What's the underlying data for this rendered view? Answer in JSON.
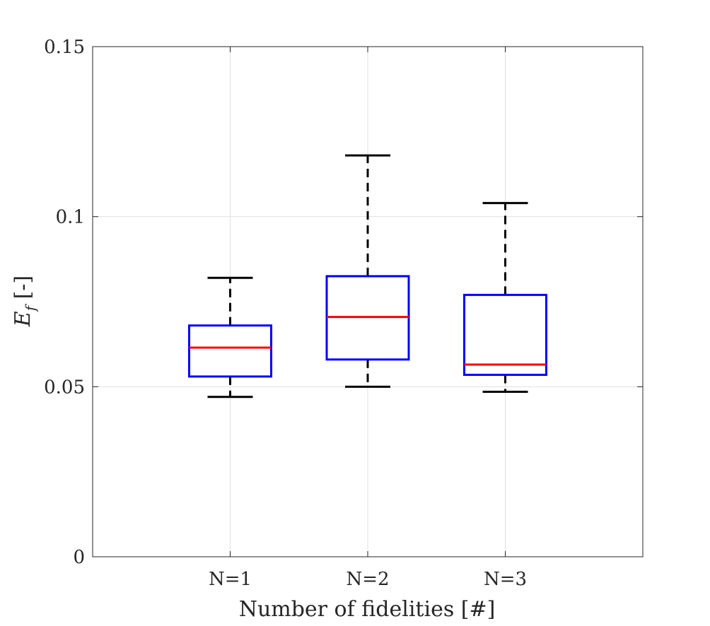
{
  "chart_data": {
    "type": "box",
    "title": "",
    "xlabel": "Number of fidelities [#]",
    "ylabel": {
      "base": "E",
      "subscript": "f",
      "suffix": " [-]"
    },
    "categories": [
      "N=1",
      "N=2",
      "N=3"
    ],
    "ylim": [
      0,
      0.15
    ],
    "yticks": [
      0,
      0.05,
      0.1,
      0.15
    ],
    "ytick_labels": [
      "0",
      "0.05",
      "0.1",
      "0.15"
    ],
    "grid": true,
    "boxes": [
      {
        "category": "N=1",
        "whisker_low": 0.047,
        "q1": 0.053,
        "median": 0.0615,
        "q3": 0.068,
        "whisker_high": 0.082
      },
      {
        "category": "N=2",
        "whisker_low": 0.05,
        "q1": 0.058,
        "median": 0.0705,
        "q3": 0.0825,
        "whisker_high": 0.118
      },
      {
        "category": "N=3",
        "whisker_low": 0.0485,
        "q1": 0.0535,
        "median": 0.0565,
        "q3": 0.077,
        "whisker_high": 0.104
      }
    ],
    "colors": {
      "box": "#0000ff",
      "median": "#ff0000",
      "whisker": "#000000",
      "grid": "#e0e0e0",
      "axes": "#262626"
    }
  }
}
